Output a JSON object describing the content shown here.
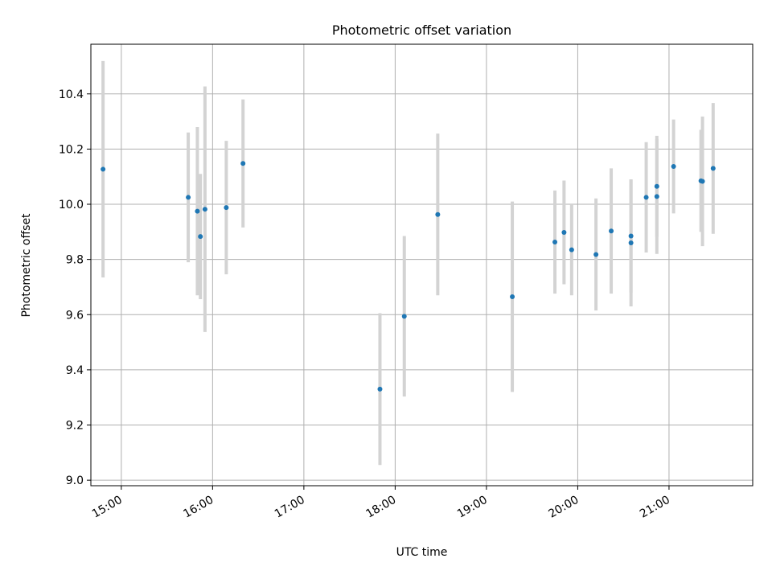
{
  "chart_data": {
    "type": "scatter",
    "title": "Photometric offset variation",
    "xlabel": "UTC time",
    "ylabel": "Photometric offset",
    "x_ticks": [
      "15:00",
      "16:00",
      "17:00",
      "18:00",
      "19:00",
      "20:00",
      "21:00"
    ],
    "y_ticks": [
      "9.0",
      "9.2",
      "9.4",
      "9.6",
      "9.8",
      "10.0",
      "10.2",
      "10.4"
    ],
    "xlim": [
      "14:40",
      "21:55"
    ],
    "ylim": [
      8.98,
      10.58
    ],
    "grid": true,
    "point_color": "#1f77b4",
    "errorbar_color": "#d3d3d3",
    "points": [
      {
        "x": "14:48",
        "y": 10.127,
        "err": 0.392
      },
      {
        "x": "15:44",
        "y": 10.025,
        "err": 0.235
      },
      {
        "x": "15:50",
        "y": 9.975,
        "err": 0.305
      },
      {
        "x": "15:52",
        "y": 9.883,
        "err": 0.227
      },
      {
        "x": "15:55",
        "y": 9.982,
        "err": 0.445
      },
      {
        "x": "16:09",
        "y": 9.988,
        "err": 0.242
      },
      {
        "x": "16:20",
        "y": 10.148,
        "err": 0.232
      },
      {
        "x": "17:50",
        "y": 9.33,
        "err": 0.275
      },
      {
        "x": "18:06",
        "y": 9.594,
        "err": 0.291
      },
      {
        "x": "18:28",
        "y": 9.963,
        "err": 0.293
      },
      {
        "x": "19:17",
        "y": 9.665,
        "err": 0.345
      },
      {
        "x": "19:45",
        "y": 9.863,
        "err": 0.187
      },
      {
        "x": "19:51",
        "y": 9.898,
        "err": 0.188
      },
      {
        "x": "19:56",
        "y": 9.835,
        "err": 0.165
      },
      {
        "x": "20:12",
        "y": 9.818,
        "err": 0.203
      },
      {
        "x": "20:22",
        "y": 9.903,
        "err": 0.227
      },
      {
        "x": "20:35",
        "y": 9.885,
        "err": 0.205
      },
      {
        "x": "20:35",
        "y": 9.86,
        "err": 0.23
      },
      {
        "x": "20:45",
        "y": 10.025,
        "err": 0.2
      },
      {
        "x": "20:52",
        "y": 10.028,
        "err": 0.208
      },
      {
        "x": "20:52",
        "y": 10.065,
        "err": 0.183
      },
      {
        "x": "21:03",
        "y": 10.137,
        "err": 0.17
      },
      {
        "x": "21:21",
        "y": 10.085,
        "err": 0.185
      },
      {
        "x": "21:22",
        "y": 10.083,
        "err": 0.235
      },
      {
        "x": "21:29",
        "y": 10.13,
        "err": 0.237
      }
    ]
  }
}
